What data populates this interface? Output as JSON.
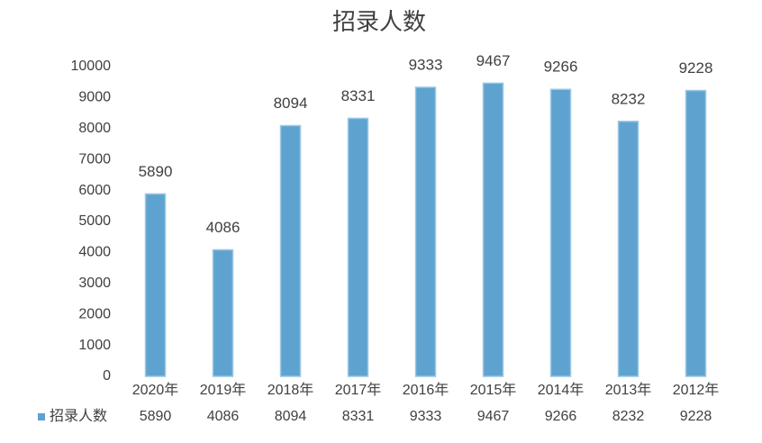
{
  "chart_data": {
    "type": "bar",
    "title": "招录人数",
    "categories": [
      "2020年",
      "2019年",
      "2018年",
      "2017年",
      "2016年",
      "2015年",
      "2014年",
      "2013年",
      "2012年"
    ],
    "series": [
      {
        "name": "招录人数",
        "color": "#5ea3d0",
        "values": [
          5890,
          4086,
          8094,
          8331,
          9333,
          9467,
          9266,
          8232,
          9228
        ]
      }
    ],
    "ylim": [
      0,
      10000
    ],
    "yticks": [
      0,
      1000,
      2000,
      3000,
      4000,
      5000,
      6000,
      7000,
      8000,
      9000,
      10000
    ],
    "grid": false,
    "data_labels": true,
    "data_table": true
  }
}
